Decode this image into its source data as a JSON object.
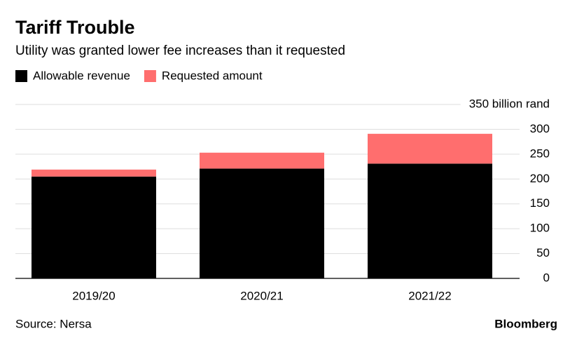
{
  "chart_data": {
    "type": "stacked_bar",
    "title": "Tariff Trouble",
    "subtitle": "Utility was granted lower fee increases than it requested",
    "categories": [
      "2019/20",
      "2020/21",
      "2021/22"
    ],
    "series": [
      {
        "name": "Allowable revenue",
        "color": "#000000",
        "values": [
          205,
          221,
          231
        ]
      },
      {
        "name": "Requested amount",
        "color": "#ff6e6e",
        "values": [
          14,
          32,
          60
        ]
      }
    ],
    "ylim": [
      0,
      350
    ],
    "yticks": [
      0,
      50,
      100,
      150,
      200,
      250,
      300,
      {
        "value": 350,
        "label": "350 billion rand"
      }
    ],
    "grid": true,
    "legend": "top-left",
    "source": "Source: Nersa",
    "brand": "Bloomberg"
  }
}
